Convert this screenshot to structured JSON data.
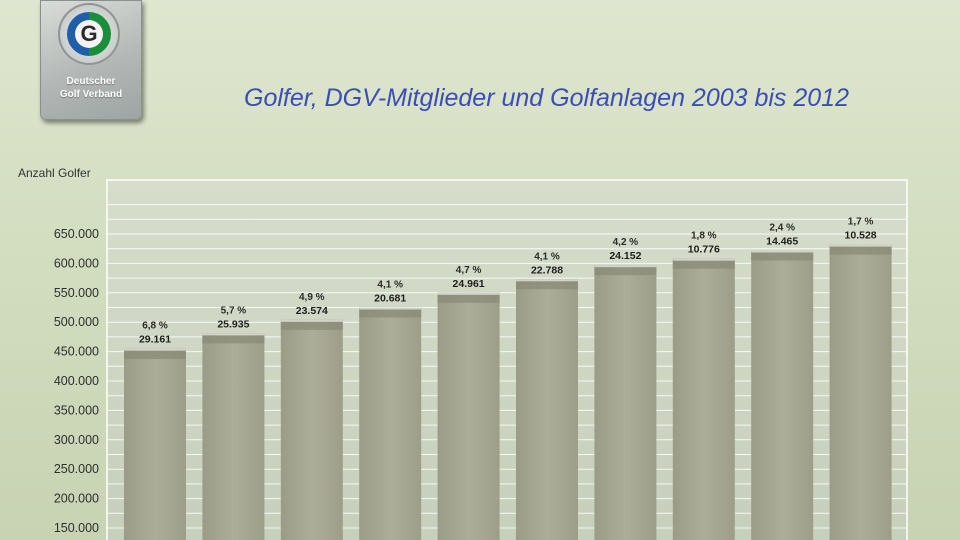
{
  "logo": {
    "letter": "G",
    "ring_text": "DEUTSCHER GOLF VERBAND",
    "line1": "Deutscher",
    "line2": "Golf Verband"
  },
  "title": "Golfer, DGV-Mitglieder und Golfanlagen 2003 bis 2012",
  "colors": {
    "title": "#3a4fb5",
    "bar": "#a6a792",
    "bar_band": "#8a8b77",
    "plot_bg": "#cdd5c3"
  },
  "chart_data": {
    "type": "bar",
    "title": "Golfer, DGV-Mitglieder und Golfanlagen 2003 bis 2012",
    "ylabel": "Anzahl Golfer",
    "ylim": [
      0,
      700000
    ],
    "y_ticks": [
      150000,
      200000,
      250000,
      300000,
      350000,
      400000,
      450000,
      500000,
      550000,
      600000,
      650000
    ],
    "y_tick_labels": [
      "150.000",
      "200.000",
      "250.000",
      "300.000",
      "350.000",
      "400.000",
      "450.000",
      "500.000",
      "550.000",
      "600.000",
      "650.000"
    ],
    "grid": true,
    "values": [
      455000,
      481000,
      504000,
      525000,
      550000,
      573000,
      597000,
      608000,
      622000,
      632000
    ],
    "increase_values": [
      29161,
      25935,
      23574,
      20681,
      24961,
      22788,
      24152,
      10776,
      14465,
      10528
    ],
    "percent_labels": [
      "6,8 %",
      "5,7 %",
      "4,9 %",
      "4,1 %",
      "4,7 %",
      "4,1 %",
      "4,2 %",
      "1,8 %",
      "2,4 %",
      "1,7 %"
    ],
    "increase_labels": [
      "29.161",
      "25.935",
      "23.574",
      "20.681",
      "24.961",
      "22.788",
      "24.152",
      "10.776",
      "14.465",
      "10.528"
    ]
  }
}
